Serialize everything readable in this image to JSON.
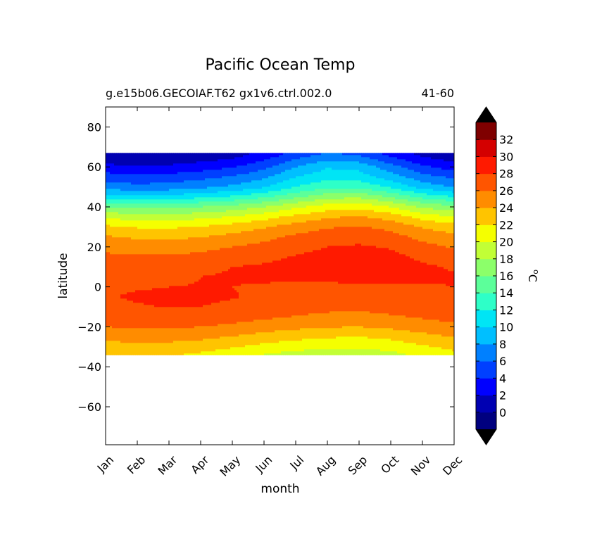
{
  "chart_data": {
    "type": "heatmap",
    "subtype": "filled-contour",
    "title": "Pacific Ocean Temp",
    "subtitle_left": "g.e15b06.GECOIAF.T62 gx1v6.ctrl.002.0",
    "subtitle_right": "41-60",
    "xlabel": "month",
    "ylabel": "latitude",
    "x_categories": [
      "Jan",
      "Feb",
      "Mar",
      "Apr",
      "May",
      "Jun",
      "Jul",
      "Aug",
      "Sep",
      "Oct",
      "Nov",
      "Dec"
    ],
    "y_ticks": [
      80,
      60,
      40,
      20,
      0,
      -20,
      -40,
      -60
    ],
    "y_tick_labels": [
      "80",
      "60",
      "40",
      "20",
      "0",
      "−20",
      "−40",
      "−60"
    ],
    "ylim": [
      -79,
      90
    ],
    "data_lat_range": [
      -34,
      67
    ],
    "colorbar": {
      "label_main": "C",
      "label_sup": "o",
      "units": "degrees C",
      "levels": [
        -2,
        0,
        2,
        4,
        6,
        8,
        10,
        12,
        14,
        16,
        18,
        20,
        22,
        24,
        26,
        28,
        30,
        32,
        34
      ],
      "tick_values": [
        0,
        2,
        4,
        6,
        8,
        10,
        12,
        14,
        16,
        18,
        20,
        22,
        24,
        26,
        28,
        30,
        32
      ],
      "tick_labels": [
        "0",
        "2",
        "4",
        "6",
        "8",
        "10",
        "12",
        "14",
        "16",
        "18",
        "20",
        "22",
        "24",
        "26",
        "28",
        "30",
        "32"
      ],
      "colors": [
        "#00007f",
        "#0000b2",
        "#0000ff",
        "#0040ff",
        "#0080ff",
        "#00bfff",
        "#00e5f5",
        "#2effc8",
        "#5cff9a",
        "#8cff6a",
        "#c2ff36",
        "#f5ff00",
        "#ffc400",
        "#ff8c00",
        "#ff5500",
        "#ff1a00",
        "#d40000",
        "#7f0000"
      ],
      "extend_color": "#000000"
    },
    "temperature_profiles": {
      "latitudes": [
        -34,
        -30,
        -25,
        -20,
        -15,
        -10,
        -5,
        0,
        5,
        10,
        15,
        20,
        25,
        30,
        35,
        40,
        45,
        50,
        55,
        60,
        65,
        67
      ],
      "Jan": [
        22.0,
        23.2,
        24.6,
        26.0,
        26.8,
        27.4,
        27.8,
        27.6,
        27.2,
        26.9,
        26.4,
        25.4,
        24.2,
        22.4,
        19.5,
        16.0,
        11.0,
        7.0,
        5.0,
        2.6,
        0.5,
        0.0
      ],
      "Feb": [
        22.4,
        23.5,
        24.8,
        26.2,
        27.0,
        27.8,
        28.3,
        27.8,
        27.2,
        26.9,
        26.2,
        25.0,
        23.7,
        21.8,
        19.0,
        15.6,
        10.6,
        6.6,
        4.6,
        2.2,
        0.3,
        0.0
      ],
      "Mar": [
        22.2,
        23.3,
        24.8,
        26.2,
        27.1,
        28.1,
        28.4,
        28.0,
        27.4,
        27.1,
        26.2,
        25.0,
        23.6,
        21.7,
        19.0,
        15.6,
        10.8,
        6.8,
        4.8,
        2.4,
        0.4,
        0.1
      ],
      "Apr": [
        21.6,
        22.9,
        24.5,
        26.0,
        27.0,
        28.0,
        28.3,
        28.1,
        28.0,
        27.5,
        26.6,
        25.3,
        23.9,
        22.1,
        19.4,
        16.0,
        11.5,
        7.5,
        5.4,
        3.0,
        0.9,
        0.4
      ],
      "May": [
        20.8,
        22.2,
        23.9,
        25.6,
        26.8,
        27.7,
        28.1,
        28.0,
        28.2,
        28.0,
        27.2,
        26.0,
        24.6,
        22.9,
        20.1,
        16.8,
        12.3,
        8.4,
        6.2,
        3.8,
        1.6,
        1.0
      ],
      "Jun": [
        19.9,
        21.4,
        23.2,
        25.0,
        26.4,
        27.2,
        27.7,
        27.8,
        28.3,
        28.2,
        27.6,
        26.6,
        25.4,
        23.8,
        21.2,
        18.0,
        13.6,
        9.8,
        7.6,
        5.4,
        3.2,
        2.5
      ],
      "Jul": [
        19.2,
        20.8,
        22.6,
        24.5,
        25.9,
        26.8,
        27.3,
        27.7,
        28.4,
        28.5,
        28.1,
        27.4,
        26.4,
        24.9,
        22.6,
        19.6,
        15.6,
        12.0,
        10.0,
        8.0,
        5.4,
        4.6
      ],
      "Aug": [
        18.8,
        20.4,
        22.2,
        24.1,
        25.6,
        26.5,
        27.0,
        27.6,
        28.5,
        28.8,
        28.6,
        28.0,
        27.1,
        25.8,
        23.7,
        21.0,
        17.3,
        13.6,
        11.2,
        9.8,
        7.0,
        6.0
      ],
      "Sep": [
        18.8,
        20.3,
        22.0,
        24.0,
        25.5,
        26.4,
        27.0,
        27.7,
        28.6,
        29.0,
        28.8,
        28.2,
        27.4,
        26.2,
        24.2,
        21.4,
        17.6,
        13.6,
        11.0,
        9.4,
        6.4,
        5.4
      ],
      "Oct": [
        19.4,
        20.8,
        22.5,
        24.4,
        25.8,
        26.7,
        27.3,
        27.8,
        28.5,
        28.8,
        28.6,
        27.8,
        26.8,
        25.4,
        23.2,
        20.0,
        15.8,
        11.6,
        9.0,
        6.8,
        4.0,
        3.2
      ],
      "Nov": [
        20.4,
        21.7,
        23.3,
        25.1,
        26.2,
        27.0,
        27.5,
        27.8,
        28.3,
        28.3,
        27.6,
        26.6,
        25.4,
        23.8,
        21.2,
        17.6,
        13.4,
        9.2,
        6.8,
        4.4,
        2.0,
        1.4
      ],
      "Dec": [
        21.4,
        22.6,
        24.1,
        25.6,
        26.6,
        27.2,
        27.6,
        28.0,
        28.2,
        27.8,
        27.0,
        25.8,
        24.6,
        22.9,
        20.1,
        16.6,
        12.0,
        7.8,
        5.6,
        3.0,
        0.8,
        0.3
      ]
    }
  }
}
